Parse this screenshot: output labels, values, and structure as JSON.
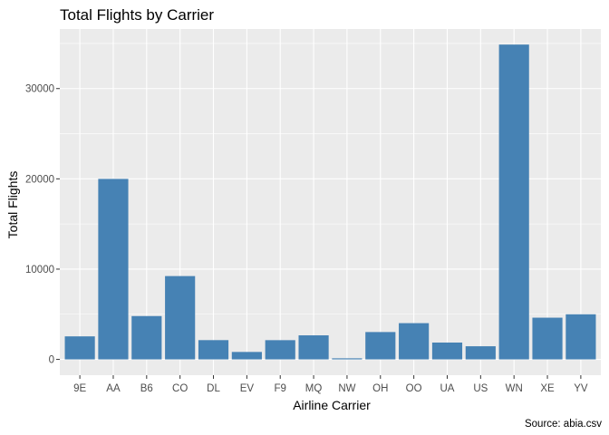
{
  "chart_data": {
    "type": "bar",
    "title": "Total Flights by Carrier",
    "xlabel": "Airline Carrier",
    "ylabel": "Total Flights",
    "caption": "Source: abia.csv",
    "categories": [
      "9E",
      "AA",
      "B6",
      "CO",
      "DL",
      "EV",
      "F9",
      "MQ",
      "NW",
      "OH",
      "OO",
      "UA",
      "US",
      "WN",
      "XE",
      "YV"
    ],
    "values": [
      2550,
      19995,
      4800,
      9230,
      2135,
      825,
      2130,
      2665,
      120,
      3030,
      4015,
      1865,
      1455,
      34875,
      4620,
      4995
    ],
    "ylim": [
      -1750,
      36600
    ],
    "yticks": [
      0,
      10000,
      20000,
      30000
    ],
    "ytick_labels": [
      "0",
      "10000",
      "20000",
      "30000"
    ],
    "grid": true,
    "legend": "none",
    "colors": {
      "bar": "#4682B4",
      "panel": "#EBEBEB",
      "grid_major": "#FFFFFF",
      "tick_text": "#4D4D4D",
      "tick_mark": "#333333"
    }
  }
}
